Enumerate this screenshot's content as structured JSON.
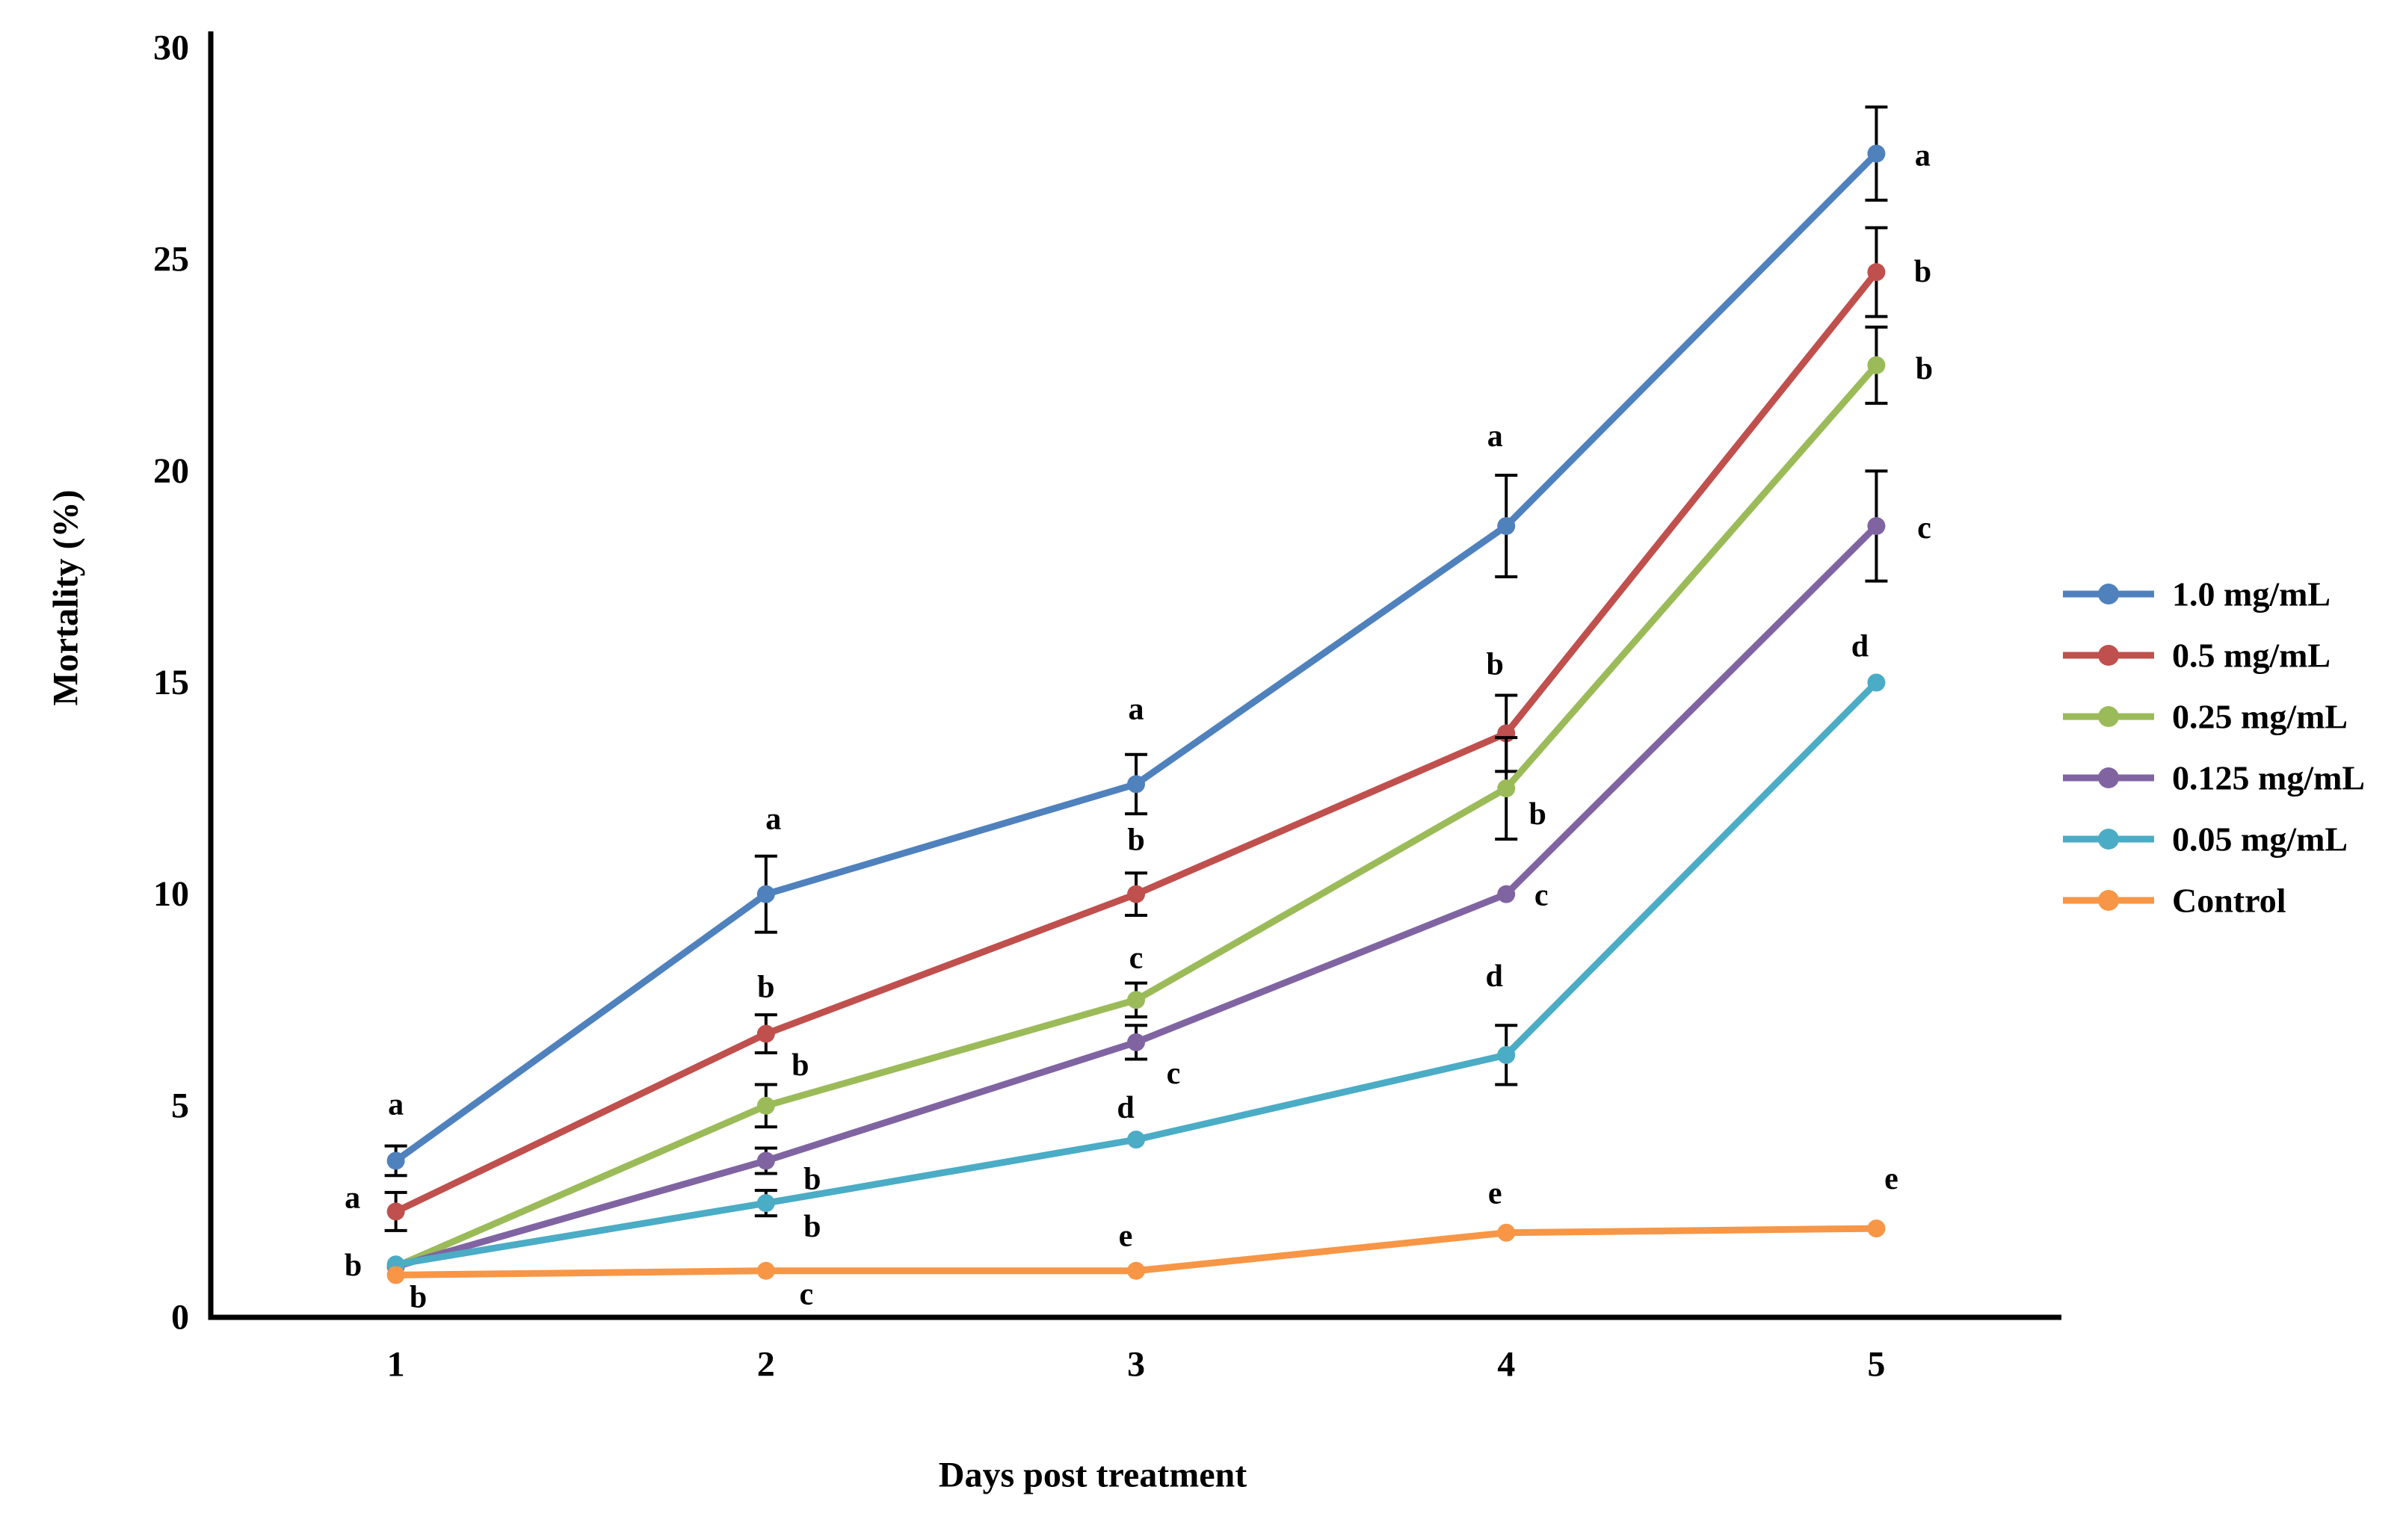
{
  "chart_data": {
    "type": "line",
    "title": "",
    "xlabel": "Days post treatment",
    "ylabel": "Mortality (%)",
    "categories": [
      1,
      2,
      3,
      4,
      5
    ],
    "ylim": [
      0,
      30
    ],
    "yticks": [
      0,
      5,
      10,
      15,
      20,
      25,
      30
    ],
    "grid": false,
    "legend_position": "right-middle",
    "background": "#ffffff",
    "axis_color": "#000000",
    "error_bar_color": "#000000",
    "series": [
      {
        "name": "1.0 mg/mL",
        "color": "#4F81BD",
        "values": [
          3.7,
          10.0,
          12.6,
          18.7,
          27.5
        ],
        "errors": [
          0.35,
          0.9,
          0.7,
          1.2,
          1.1
        ],
        "letters": [
          {
            "day": 1,
            "label": "a",
            "dx": 0,
            "dy": -75
          },
          {
            "day": 2,
            "label": "a",
            "dx": 10,
            "dy": -100
          },
          {
            "day": 3,
            "label": "a",
            "dx": 0,
            "dy": -100
          },
          {
            "day": 4,
            "label": "a",
            "dx": -15,
            "dy": -120
          },
          {
            "day": 5,
            "label": "a",
            "dx": 62,
            "dy": 3
          }
        ]
      },
      {
        "name": "0.5 mg/mL",
        "color": "#C0504D",
        "values": [
          2.5,
          6.7,
          10.0,
          13.8,
          24.7
        ],
        "errors": [
          0.45,
          0.45,
          0.5,
          0.9,
          1.05
        ],
        "letters": [
          {
            "day": 1,
            "label": "a",
            "dx": -58,
            "dy": -18
          },
          {
            "day": 2,
            "label": "b",
            "dx": 0,
            "dy": -62
          },
          {
            "day": 3,
            "label": "b",
            "dx": 0,
            "dy": -72
          },
          {
            "day": 4,
            "label": "b",
            "dx": -15,
            "dy": -92
          },
          {
            "day": 5,
            "label": "b",
            "dx": 62,
            "dy": 0
          }
        ]
      },
      {
        "name": "0.25 mg/mL",
        "color": "#9BBB59",
        "values": [
          1.2,
          5.0,
          7.5,
          12.5,
          22.5
        ],
        "errors": [
          0,
          0.5,
          0.4,
          1.2,
          0.9
        ],
        "letters": [
          {
            "day": 2,
            "label": "b",
            "dx": 46,
            "dy": -54
          },
          {
            "day": 3,
            "label": "c",
            "dx": 0,
            "dy": -56
          },
          {
            "day": 4,
            "label": "b",
            "dx": 42,
            "dy": 35
          },
          {
            "day": 5,
            "label": "b",
            "dx": 64,
            "dy": 5
          }
        ]
      },
      {
        "name": "0.125 mg/mL",
        "color": "#8064A2",
        "values": [
          1.2,
          3.7,
          6.5,
          10.0,
          18.7
        ],
        "errors": [
          0,
          0.3,
          0.4,
          0,
          1.3
        ],
        "letters": [
          {
            "day": 2,
            "label": "b",
            "dx": 62,
            "dy": 25
          },
          {
            "day": 3,
            "label": "c",
            "dx": 50,
            "dy": 42
          },
          {
            "day": 4,
            "label": "c",
            "dx": 47,
            "dy": 2
          },
          {
            "day": 5,
            "label": "c",
            "dx": 64,
            "dy": 3
          }
        ]
      },
      {
        "name": "0.05 mg/mL",
        "color": "#4BACC6",
        "values": [
          1.25,
          2.7,
          4.2,
          6.2,
          15.0
        ],
        "errors": [
          0,
          0.3,
          0,
          0.7,
          0
        ],
        "letters": [
          {
            "day": 1,
            "label": "b",
            "dx": -57,
            "dy": 2
          },
          {
            "day": 2,
            "label": "b",
            "dx": 62,
            "dy": 32
          },
          {
            "day": 3,
            "label": "d",
            "dx": -14,
            "dy": -42
          },
          {
            "day": 4,
            "label": "d",
            "dx": -16,
            "dy": -105
          },
          {
            "day": 5,
            "label": "d",
            "dx": -22,
            "dy": -48
          }
        ]
      },
      {
        "name": "Control",
        "color": "#F79646",
        "values": [
          1.0,
          1.1,
          1.1,
          2.0,
          2.1
        ],
        "errors": [
          0,
          0,
          0,
          0,
          0
        ],
        "letters": [
          {
            "day": 1,
            "label": "b",
            "dx": 30,
            "dy": 30
          },
          {
            "day": 2,
            "label": "c",
            "dx": 54,
            "dy": 32
          },
          {
            "day": 3,
            "label": "e",
            "dx": -14,
            "dy": -46
          },
          {
            "day": 4,
            "label": "e",
            "dx": -15,
            "dy": -52
          },
          {
            "day": 5,
            "label": "e",
            "dx": 20,
            "dy": -66
          }
        ]
      }
    ]
  }
}
